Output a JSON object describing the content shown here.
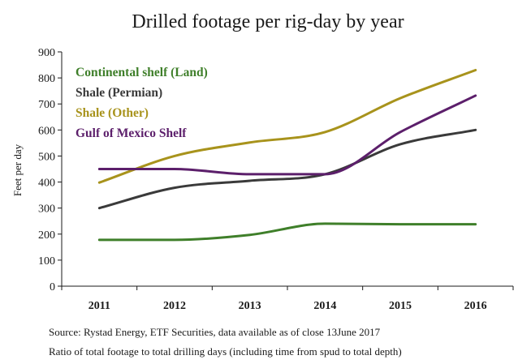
{
  "chart_data": {
    "type": "line",
    "title": "Drilled footage per rig-day by year",
    "xlabel": "",
    "ylabel": "Feet per day",
    "x": [
      "2011",
      "2012",
      "2013",
      "2014",
      "2015",
      "2016"
    ],
    "ylim": [
      0,
      900
    ],
    "yticks": [
      0,
      100,
      200,
      300,
      400,
      500,
      600,
      700,
      800,
      900
    ],
    "grid": false,
    "legend_position": "top-left",
    "series": [
      {
        "name": "Continental shelf (Land)",
        "color": "#3f7f2a",
        "values": [
          178,
          178,
          197,
          240,
          238,
          238
        ]
      },
      {
        "name": "Shale (Permian)",
        "color": "#3a3a3a",
        "values": [
          300,
          378,
          405,
          430,
          545,
          600
        ]
      },
      {
        "name": "Shale (Other)",
        "color": "#a8931c",
        "values": [
          398,
          500,
          552,
          592,
          722,
          830
        ]
      },
      {
        "name": "Gulf of Mexico Shelf",
        "color": "#5c1f6b",
        "values": [
          450,
          450,
          430,
          430,
          592,
          732
        ]
      }
    ],
    "notes": [
      "Source: Rystad Energy, ETF Securities, data available as of close 13June 2017",
      "Ratio of total footage to total drilling days (including time from spud to total depth)"
    ]
  }
}
